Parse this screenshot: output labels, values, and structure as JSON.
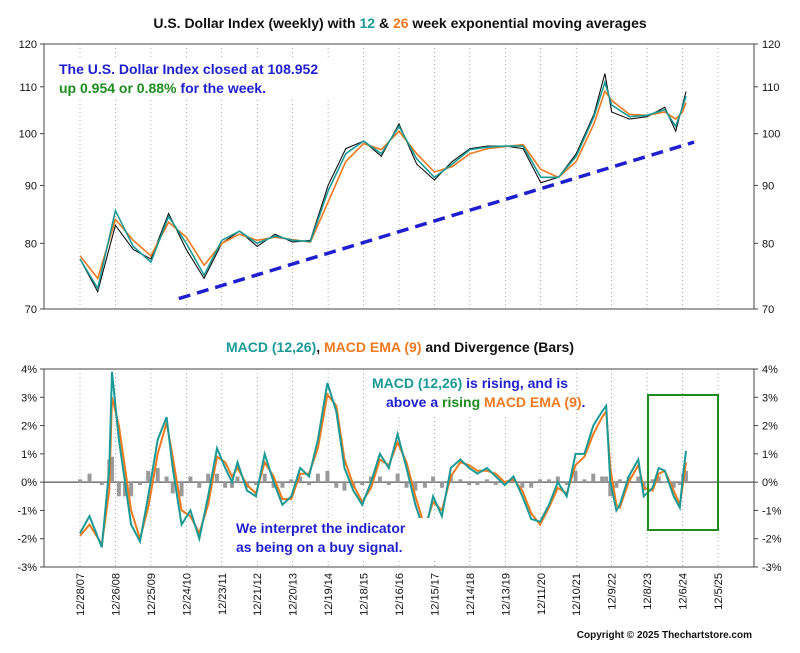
{
  "colors": {
    "ema12": "#1a9a96",
    "ema26": "#ef7a1e",
    "blue": "#1f1fd0",
    "green": "#1e8c1e",
    "bars": "#9a9a9a",
    "price": "#111111",
    "gridline": "#777777"
  },
  "title": {
    "prefix": "U.S. Dollar Index (weekly) with ",
    "n12": "12",
    "amp": " & ",
    "n26": "26",
    "suffix": " week exponential moving averages"
  },
  "price_note": {
    "line1": "The U.S. Dollar Index closed at 108.952",
    "line2_a": "up 0.954 or 0.88%",
    "line2_b": " for the week."
  },
  "macd_title": {
    "a": "MACD (12,26)",
    "b": ", ",
    "c": "MACD EMA (9)",
    "d": " and Divergence (Bars)"
  },
  "macd_note": {
    "l1a": "MACD (12,26)",
    "l1b": " is rising",
    "l1c": ", and is",
    "l2a": "above a ",
    "l2b": "rising",
    "l2c": " ",
    "l2d": "MACD EMA (9)",
    "l2e": "."
  },
  "signal_note": {
    "line1": "We interpret the indicator",
    "line2": "as being on a buy signal."
  },
  "copyright": "Copyright © 2025 Thechartstore.com",
  "chart_data": [
    {
      "type": "line",
      "title": "U.S. Dollar Index (weekly) with 12 & 26 week exponential moving averages",
      "y_ticks": [
        "120",
        "110",
        "100",
        "90",
        "80",
        "70"
      ],
      "ylim": [
        70,
        120
      ],
      "x_ticks": [
        "12/28/07",
        "12/26/08",
        "12/25/09",
        "12/24/10",
        "12/23/11",
        "12/21/12",
        "12/20/13",
        "12/19/14",
        "12/18/15",
        "12/16/16",
        "12/15/17",
        "12/14/18",
        "12/13/19",
        "12/11/20",
        "12/10/21",
        "12/9/22",
        "12/8/23",
        "12/6/24",
        "12/5/25"
      ],
      "series": [
        {
          "name": "U.S. Dollar Index",
          "x": [
            "12/28/07",
            "6/27/08",
            "12/26/08",
            "6/26/09",
            "12/25/09",
            "6/25/10",
            "12/24/10",
            "6/24/11",
            "12/23/11",
            "6/22/12",
            "12/21/12",
            "6/21/13",
            "12/20/13",
            "6/20/14",
            "12/19/14",
            "6/19/15",
            "12/18/15",
            "6/17/16",
            "12/16/16",
            "6/16/17",
            "12/15/17",
            "6/15/18",
            "12/14/18",
            "6/14/19",
            "12/13/19",
            "6/12/20",
            "12/11/20",
            "6/11/21",
            "12/10/21",
            "6/10/22",
            "9/30/22",
            "12/9/22",
            "6/9/23",
            "12/8/23",
            "6/7/24",
            "9/27/24",
            "12/6/24",
            "1/10/25"
          ],
          "values": [
            77.5,
            72.5,
            83,
            79,
            77.5,
            85,
            79,
            74.5,
            80,
            82,
            79.5,
            81.5,
            80.2,
            80.5,
            90,
            97,
            98.5,
            95.5,
            102,
            94,
            91,
            94.5,
            97,
            97.5,
            97.5,
            97,
            90.5,
            91.5,
            96,
            104,
            113,
            104.5,
            103,
            103.5,
            105.5,
            100.5,
            106,
            108.95
          ]
        },
        {
          "name": "12 week EMA",
          "x": [
            "12/28/07",
            "6/27/08",
            "12/26/08",
            "6/26/09",
            "12/25/09",
            "6/25/10",
            "12/24/10",
            "6/24/11",
            "12/23/11",
            "6/22/12",
            "12/21/12",
            "6/21/13",
            "12/20/13",
            "6/20/14",
            "12/19/14",
            "6/19/15",
            "12/18/15",
            "6/17/16",
            "12/16/16",
            "6/16/17",
            "12/15/17",
            "6/15/18",
            "12/14/18",
            "6/14/19",
            "12/13/19",
            "6/12/20",
            "12/11/20",
            "6/11/21",
            "12/10/21",
            "6/10/22",
            "9/30/22",
            "12/9/22",
            "6/9/23",
            "12/8/23",
            "6/7/24",
            "9/27/24",
            "12/6/24",
            "1/10/25"
          ],
          "values": [
            77.5,
            73,
            85.5,
            79.5,
            77,
            84.5,
            80,
            75,
            80.5,
            82,
            80,
            81.2,
            80.5,
            80.3,
            89,
            96,
            98.5,
            96,
            101.5,
            95,
            91.5,
            94,
            96.8,
            97.3,
            97.5,
            97.5,
            91.5,
            91.5,
            95.5,
            103.5,
            111,
            106,
            103.5,
            103.8,
            105,
            101.5,
            105.5,
            108
          ]
        },
        {
          "name": "26 week EMA",
          "x": [
            "12/28/07",
            "6/27/08",
            "12/26/08",
            "6/26/09",
            "12/25/09",
            "6/25/10",
            "12/24/10",
            "6/24/11",
            "12/23/11",
            "6/22/12",
            "12/21/12",
            "6/21/13",
            "12/20/13",
            "6/20/14",
            "12/19/14",
            "6/19/15",
            "12/18/15",
            "6/17/16",
            "12/16/16",
            "6/16/17",
            "12/15/17",
            "6/15/18",
            "12/14/18",
            "6/14/19",
            "12/13/19",
            "6/12/20",
            "12/11/20",
            "6/11/21",
            "12/10/21",
            "6/10/22",
            "9/30/22",
            "12/9/22",
            "6/9/23",
            "12/8/23",
            "6/7/24",
            "9/27/24",
            "12/6/24",
            "1/10/25"
          ],
          "values": [
            78,
            74.5,
            84,
            80.5,
            78,
            83.5,
            81,
            76.5,
            80,
            81.5,
            80.5,
            81,
            80.6,
            80.2,
            87,
            94.5,
            98,
            96.8,
            100.5,
            96,
            92.5,
            93.5,
            96,
            97,
            97.4,
            97.8,
            93,
            91.5,
            94.5,
            102,
            109,
            107,
            104,
            103.8,
            104.5,
            103,
            104.5,
            106.5
          ]
        },
        {
          "name": "Trend line",
          "x": [
            "10/8/10",
            "4/4/25"
          ],
          "values": [
            71.5,
            98.3
          ]
        }
      ]
    },
    {
      "type": "line",
      "title": "MACD (12,26), MACD EMA (9) and Divergence (Bars)",
      "y_ticks": [
        "4%",
        "3%",
        "2%",
        "1%",
        "0%",
        "-1%",
        "-2%",
        "-3%"
      ],
      "ylim": [
        -3,
        4
      ],
      "x_ticks": [
        "12/28/07",
        "12/26/08",
        "12/25/09",
        "12/24/10",
        "12/23/11",
        "12/21/12",
        "12/20/13",
        "12/19/14",
        "12/18/15",
        "12/16/16",
        "12/15/17",
        "12/14/18",
        "12/13/19",
        "12/11/20",
        "12/10/21",
        "12/9/22",
        "12/8/23",
        "12/6/24",
        "12/5/25"
      ],
      "series": [
        {
          "name": "MACD (12,26)",
          "x": [
            "12/28/07",
            "4/4/08",
            "8/8/08",
            "10/24/08",
            "11/21/08",
            "1/30/09",
            "4/3/09",
            "6/5/09",
            "9/4/09",
            "11/27/09",
            "3/5/10",
            "6/4/10",
            "8/6/10",
            "11/5/10",
            "2/4/11",
            "5/6/11",
            "8/5/11",
            "11/4/11",
            "1/27/12",
            "4/6/12",
            "6/1/12",
            "9/7/12",
            "12/7/12",
            "3/8/13",
            "6/7/13",
            "9/6/13",
            "12/6/13",
            "3/7/14",
            "6/6/14",
            "9/5/14",
            "12/12/14",
            "3/13/15",
            "6/5/15",
            "9/4/15",
            "12/4/15",
            "3/4/16",
            "6/3/16",
            "9/2/16",
            "12/2/16",
            "3/3/17",
            "6/2/17",
            "9/8/17",
            "12/1/17",
            "3/2/18",
            "6/1/18",
            "9/7/18",
            "12/7/18",
            "3/1/19",
            "6/7/19",
            "9/6/19",
            "12/6/19",
            "3/6/20",
            "6/5/20",
            "9/4/20",
            "12/4/20",
            "3/5/21",
            "6/4/21",
            "9/3/21",
            "12/3/21",
            "3/4/22",
            "6/3/22",
            "9/2/22",
            "10/14/22",
            "11/25/22",
            "1/27/23",
            "3/3/23",
            "6/2/23",
            "9/8/23",
            "11/3/23",
            "2/2/24",
            "4/5/24",
            "6/7/24",
            "9/6/24",
            "11/8/24",
            "12/13/24",
            "1/10/25"
          ],
          "values": [
            -1.8,
            -1.2,
            -2.3,
            0.5,
            3.9,
            1.5,
            0.0,
            -1.5,
            -2.1,
            -0.5,
            1.5,
            2.3,
            0.5,
            -1.5,
            -1.0,
            -2.0,
            -0.5,
            1.2,
            0.5,
            0.0,
            0.7,
            -0.3,
            -0.5,
            1.0,
            0.0,
            -0.8,
            -0.5,
            0.5,
            0.2,
            1.5,
            3.5,
            2.5,
            0.5,
            -0.3,
            -0.8,
            0.0,
            1.0,
            0.5,
            1.7,
            0.5,
            -0.8,
            -1.8,
            -0.5,
            -1.2,
            0.5,
            0.8,
            0.5,
            0.3,
            0.5,
            0.2,
            -0.1,
            0.2,
            -0.5,
            -1.3,
            -1.4,
            -0.8,
            0.0,
            -0.5,
            1.0,
            1.0,
            2.0,
            2.5,
            2.7,
            0.0,
            -1.0,
            -0.8,
            0.2,
            0.8,
            -0.5,
            -0.2,
            0.5,
            0.4,
            -0.5,
            -0.9,
            0.3,
            1.1
          ]
        },
        {
          "name": "MACD EMA (9)",
          "x": [
            "12/28/07",
            "4/4/08",
            "8/8/08",
            "10/24/08",
            "11/21/08",
            "1/30/09",
            "4/3/09",
            "6/5/09",
            "9/4/09",
            "11/27/09",
            "3/5/10",
            "6/4/10",
            "8/6/10",
            "11/5/10",
            "2/4/11",
            "5/6/11",
            "8/5/11",
            "11/4/11",
            "1/27/12",
            "4/6/12",
            "6/1/12",
            "9/7/12",
            "12/7/12",
            "3/8/13",
            "6/7/13",
            "9/6/13",
            "12/6/13",
            "3/7/14",
            "6/6/14",
            "9/5/14",
            "12/12/14",
            "3/13/15",
            "6/5/15",
            "9/4/15",
            "12/4/15",
            "3/4/16",
            "6/3/16",
            "9/2/16",
            "12/2/16",
            "3/3/17",
            "6/2/17",
            "9/8/17",
            "12/1/17",
            "3/2/18",
            "6/1/18",
            "9/7/18",
            "12/7/18",
            "3/1/19",
            "6/7/19",
            "9/6/19",
            "12/6/19",
            "3/6/20",
            "6/5/20",
            "9/4/20",
            "12/4/20",
            "3/5/21",
            "6/4/21",
            "9/3/21",
            "12/3/21",
            "3/4/22",
            "6/3/22",
            "9/2/22",
            "10/14/22",
            "11/25/22",
            "1/27/23",
            "3/3/23",
            "6/2/23",
            "9/8/23",
            "11/3/23",
            "2/2/24",
            "4/5/24",
            "6/7/24",
            "9/6/24",
            "11/8/24",
            "12/13/24",
            "1/10/25"
          ],
          "values": [
            -1.9,
            -1.5,
            -2.2,
            -0.3,
            3.0,
            2.0,
            0.5,
            -1.0,
            -2.0,
            -0.9,
            1.0,
            2.1,
            0.9,
            -1.0,
            -1.2,
            -1.8,
            -0.8,
            0.9,
            0.7,
            0.2,
            0.5,
            -0.1,
            -0.4,
            0.7,
            0.2,
            -0.6,
            -0.6,
            0.3,
            0.3,
            1.2,
            3.1,
            2.7,
            0.8,
            -0.1,
            -0.7,
            -0.2,
            0.8,
            0.6,
            1.4,
            0.7,
            -0.5,
            -1.6,
            -0.7,
            -1.0,
            0.2,
            0.7,
            0.6,
            0.4,
            0.4,
            0.3,
            0.0,
            0.1,
            -0.3,
            -1.1,
            -1.5,
            -0.9,
            -0.2,
            -0.4,
            0.6,
            0.9,
            1.7,
            2.3,
            2.5,
            0.5,
            -0.8,
            -0.9,
            0.0,
            0.6,
            -0.2,
            -0.3,
            0.3,
            0.4,
            -0.3,
            -0.8,
            0.0,
            0.7
          ]
        },
        {
          "name": "Divergence (Bars)",
          "x": [
            "12/28/07",
            "4/4/08",
            "8/8/08",
            "10/24/08",
            "11/21/08",
            "1/30/09",
            "4/3/09",
            "6/5/09",
            "9/4/09",
            "11/27/09",
            "3/5/10",
            "6/4/10",
            "8/6/10",
            "11/5/10",
            "2/4/11",
            "5/6/11",
            "8/5/11",
            "11/4/11",
            "1/27/12",
            "4/6/12",
            "6/1/12",
            "9/7/12",
            "12/7/12",
            "3/8/13",
            "6/7/13",
            "9/6/13",
            "12/6/13",
            "3/7/14",
            "6/6/14",
            "9/5/14",
            "12/12/14",
            "3/13/15",
            "6/5/15",
            "9/4/15",
            "12/4/15",
            "3/4/16",
            "6/3/16",
            "9/2/16",
            "12/2/16",
            "3/3/17",
            "6/2/17",
            "9/8/17",
            "12/1/17",
            "3/2/18",
            "6/1/18",
            "9/7/18",
            "12/7/18",
            "3/1/19",
            "6/7/19",
            "9/6/19",
            "12/6/19",
            "3/6/20",
            "6/5/20",
            "9/4/20",
            "12/4/20",
            "3/5/21",
            "6/4/21",
            "9/3/21",
            "12/3/21",
            "3/4/22",
            "6/3/22",
            "9/2/22",
            "10/14/22",
            "11/25/22",
            "1/27/23",
            "3/3/23",
            "6/2/23",
            "9/8/23",
            "11/3/23",
            "2/2/24",
            "4/5/24",
            "6/7/24",
            "9/6/24",
            "11/8/24",
            "12/13/24",
            "1/10/25"
          ],
          "values": [
            0.1,
            0.3,
            -0.1,
            0.8,
            0.9,
            -0.5,
            -0.5,
            -0.5,
            -0.1,
            0.4,
            0.5,
            0.2,
            -0.4,
            -0.5,
            0.2,
            -0.2,
            0.3,
            0.3,
            -0.2,
            -0.2,
            0.2,
            -0.2,
            -0.1,
            0.3,
            -0.2,
            -0.2,
            0.1,
            0.2,
            -0.1,
            0.3,
            0.4,
            -0.2,
            -0.3,
            -0.2,
            -0.1,
            0.2,
            0.2,
            -0.1,
            0.3,
            -0.2,
            -0.3,
            -0.2,
            0.2,
            -0.2,
            0.3,
            0.1,
            -0.1,
            -0.1,
            0.1,
            -0.1,
            -0.1,
            0.1,
            -0.2,
            -0.2,
            0.1,
            0.1,
            0.2,
            -0.1,
            0.4,
            0.1,
            0.3,
            0.2,
            0.2,
            -0.5,
            -0.2,
            0.1,
            0.2,
            0.2,
            -0.3,
            0.1,
            0.2,
            0.0,
            -0.2,
            -0.1,
            0.3,
            0.4
          ]
        }
      ]
    }
  ]
}
